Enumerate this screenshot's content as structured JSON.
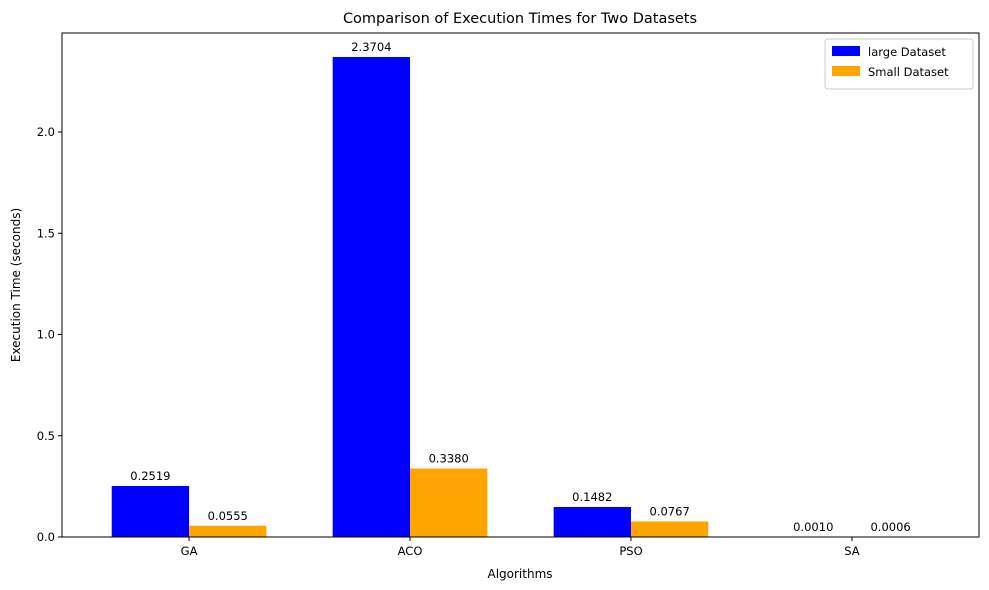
{
  "chart_data": {
    "type": "bar",
    "title": "Comparison of Execution Times for Two Datasets",
    "xlabel": "Algorithms",
    "ylabel": "Execution Time (seconds)",
    "categories": [
      "GA",
      "ACO",
      "PSO",
      "SA"
    ],
    "series": [
      {
        "name": "large Dataset",
        "color": "#0000ff",
        "values": [
          0.2519,
          2.3704,
          0.1482,
          0.001
        ],
        "labels": [
          "0.2519",
          "2.3704",
          "0.1482",
          "0.0010"
        ]
      },
      {
        "name": "Small Dataset",
        "color": "#ffa500",
        "values": [
          0.0555,
          0.338,
          0.0767,
          0.0006
        ],
        "labels": [
          "0.0555",
          "0.3380",
          "0.0767",
          "0.0006"
        ]
      }
    ],
    "ylim": [
      0,
      2.4889
    ],
    "yticks": [
      0.0,
      0.5,
      1.0,
      1.5,
      2.0
    ],
    "ytick_labels": [
      "0.0",
      "0.5",
      "1.0",
      "1.5",
      "2.0"
    ],
    "grid": false,
    "legend_position": "top-right"
  }
}
